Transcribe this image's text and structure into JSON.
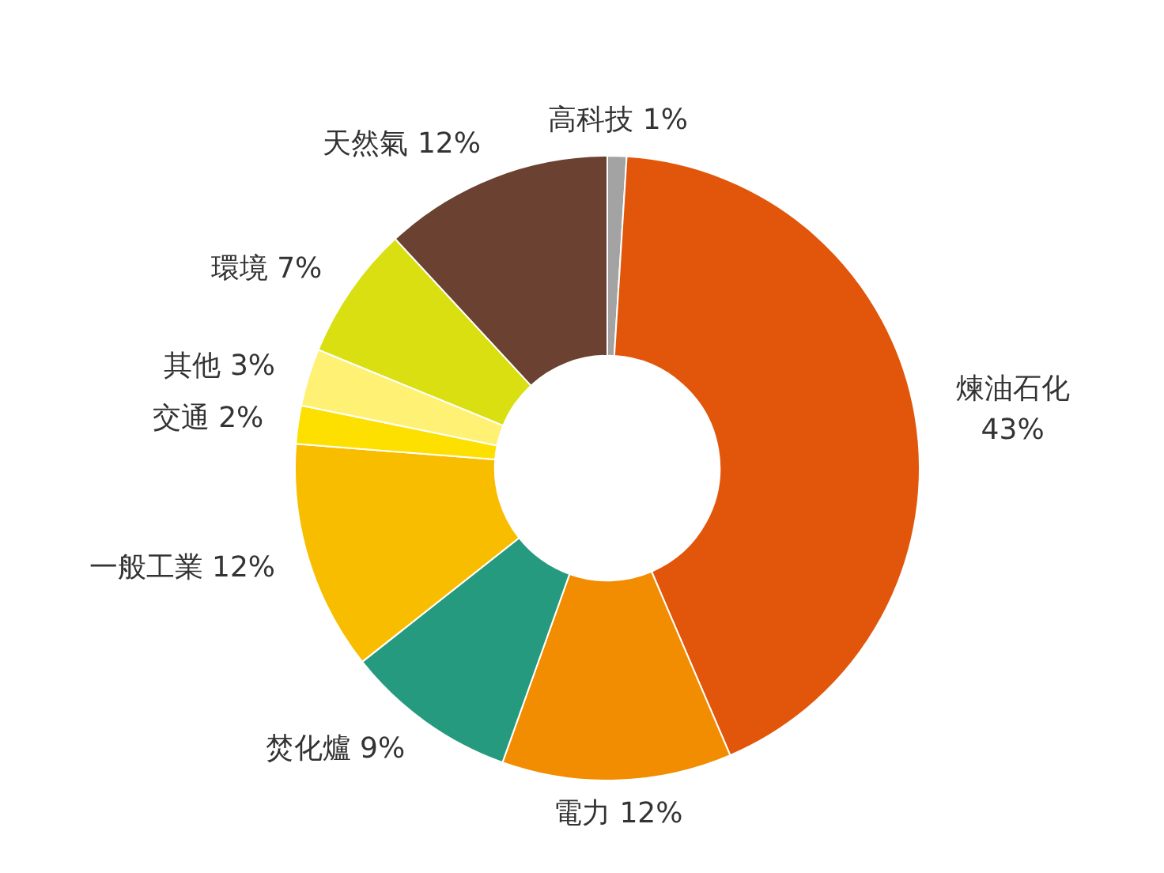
{
  "chart_data": {
    "type": "donut",
    "categories": [
      "高科技",
      "煉油石化",
      "電力",
      "焚化爐",
      "一般工業",
      "交通",
      "其他",
      "環境",
      "天然氣"
    ],
    "values": [
      1,
      43,
      12,
      9,
      12,
      2,
      3,
      7,
      12
    ],
    "value_labels": [
      "1%",
      "43%",
      "12%",
      "9%",
      "12%",
      "2%",
      "3%",
      "7%",
      "12%"
    ],
    "colors": [
      "#a3a3a3",
      "#e2560b",
      "#f28c00",
      "#269a7f",
      "#f9bd00",
      "#fde000",
      "#fef174",
      "#d9df10",
      "#6b4131"
    ],
    "legend": false
  }
}
